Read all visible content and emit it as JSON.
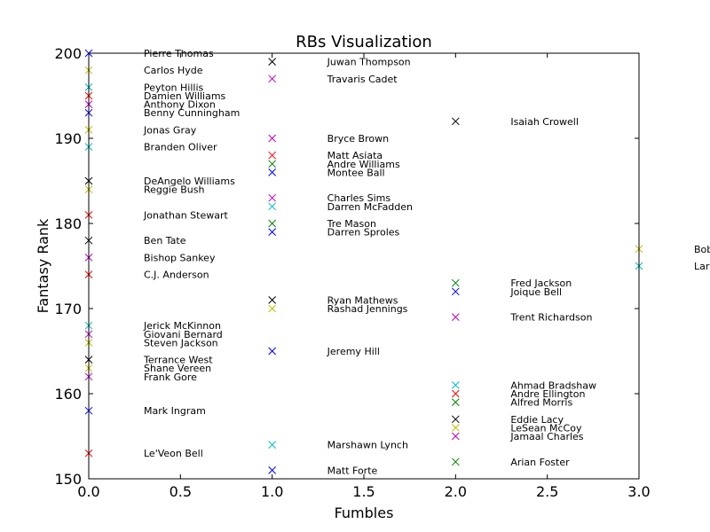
{
  "chart_data": {
    "type": "scatter",
    "title": "RBs Visualization",
    "xlabel": "Fumbles",
    "ylabel": "Fantasy Rank",
    "xlim": [
      0,
      3
    ],
    "ylim": [
      150,
      200
    ],
    "xticks": [
      "0.0",
      "0.5",
      "1.0",
      "1.5",
      "2.0",
      "2.5",
      "3.0"
    ],
    "xtick_values": [
      0,
      0.5,
      1,
      1.5,
      2,
      2.5,
      3
    ],
    "yticks": [
      "150",
      "160",
      "170",
      "180",
      "190",
      "200"
    ],
    "ytick_values": [
      150,
      160,
      170,
      180,
      190,
      200
    ],
    "marker": "x",
    "label_offset_x": 0.3,
    "grid": false,
    "palette": [
      "#0000ff",
      "#008000",
      "#ff0000",
      "#00bfbf",
      "#bf00bf",
      "#bfbf00",
      "#000000"
    ],
    "points": [
      {
        "name": "Pierre Thomas",
        "x": 0,
        "y": 200,
        "color": "#0000ff"
      },
      {
        "name": "Carlos Hyde",
        "x": 0,
        "y": 198,
        "color": "#bfbf00"
      },
      {
        "name": "Peyton Hillis",
        "x": 0,
        "y": 196,
        "color": "#00bfbf"
      },
      {
        "name": "Damien Williams",
        "x": 0,
        "y": 195,
        "color": "#ff0000"
      },
      {
        "name": "Anthony Dixon",
        "x": 0,
        "y": 194,
        "color": "#bf00bf"
      },
      {
        "name": "Benny Cunningham",
        "x": 0,
        "y": 193,
        "color": "#0000ff"
      },
      {
        "name": "Jonas Gray",
        "x": 0,
        "y": 191,
        "color": "#bfbf00"
      },
      {
        "name": "Branden Oliver",
        "x": 0,
        "y": 189,
        "color": "#00bfbf"
      },
      {
        "name": "DeAngelo Williams",
        "x": 0,
        "y": 185,
        "color": "#000000"
      },
      {
        "name": "Reggie Bush",
        "x": 0,
        "y": 184,
        "color": "#bfbf00"
      },
      {
        "name": "Jonathan Stewart",
        "x": 0,
        "y": 181,
        "color": "#ff0000"
      },
      {
        "name": "Ben Tate",
        "x": 0,
        "y": 178,
        "color": "#000000"
      },
      {
        "name": "Bishop Sankey",
        "x": 0,
        "y": 176,
        "color": "#bf00bf"
      },
      {
        "name": "C.J. Anderson",
        "x": 0,
        "y": 174,
        "color": "#ff0000"
      },
      {
        "name": "Jerick McKinnon",
        "x": 0,
        "y": 168,
        "color": "#00bfbf"
      },
      {
        "name": "Giovani Bernard",
        "x": 0,
        "y": 167,
        "color": "#bf00bf"
      },
      {
        "name": "Steven Jackson",
        "x": 0,
        "y": 166,
        "color": "#bfbf00"
      },
      {
        "name": "Terrance West",
        "x": 0,
        "y": 164,
        "color": "#000000"
      },
      {
        "name": "Shane Vereen",
        "x": 0,
        "y": 163,
        "color": "#bfbf00"
      },
      {
        "name": "Frank Gore",
        "x": 0,
        "y": 162,
        "color": "#bf00bf"
      },
      {
        "name": "Mark Ingram",
        "x": 0,
        "y": 158,
        "color": "#0000ff"
      },
      {
        "name": "Le'Veon Bell",
        "x": 0,
        "y": 153,
        "color": "#ff0000"
      },
      {
        "name": "Juwan Thompson",
        "x": 1,
        "y": 199,
        "color": "#000000"
      },
      {
        "name": "Travaris Cadet",
        "x": 1,
        "y": 197,
        "color": "#bf00bf"
      },
      {
        "name": "Bryce Brown",
        "x": 1,
        "y": 190,
        "color": "#bf00bf"
      },
      {
        "name": "Matt Asiata",
        "x": 1,
        "y": 188,
        "color": "#ff0000"
      },
      {
        "name": "Andre Williams",
        "x": 1,
        "y": 187,
        "color": "#008000"
      },
      {
        "name": "Montee Ball",
        "x": 1,
        "y": 186,
        "color": "#0000ff"
      },
      {
        "name": "Charles Sims",
        "x": 1,
        "y": 183,
        "color": "#bf00bf"
      },
      {
        "name": "Darren McFadden",
        "x": 1,
        "y": 182,
        "color": "#00bfbf"
      },
      {
        "name": "Tre Mason",
        "x": 1,
        "y": 180,
        "color": "#008000"
      },
      {
        "name": "Darren Sproles",
        "x": 1,
        "y": 179,
        "color": "#0000ff"
      },
      {
        "name": "Ryan Mathews",
        "x": 1,
        "y": 171,
        "color": "#000000"
      },
      {
        "name": "Rashad Jennings",
        "x": 1,
        "y": 170,
        "color": "#bfbf00"
      },
      {
        "name": "Jeremy Hill",
        "x": 1,
        "y": 165,
        "color": "#0000ff"
      },
      {
        "name": "Marshawn Lynch",
        "x": 1,
        "y": 154,
        "color": "#00bfbf"
      },
      {
        "name": "Matt Forte",
        "x": 1,
        "y": 151,
        "color": "#0000ff"
      },
      {
        "name": "Isaiah Crowell",
        "x": 2,
        "y": 192,
        "color": "#000000"
      },
      {
        "name": "Fred Jackson",
        "x": 2,
        "y": 173,
        "color": "#008000"
      },
      {
        "name": "Joique Bell",
        "x": 2,
        "y": 172,
        "color": "#0000ff"
      },
      {
        "name": "Trent Richardson",
        "x": 2,
        "y": 169,
        "color": "#bf00bf"
      },
      {
        "name": "Ahmad Bradshaw",
        "x": 2,
        "y": 161,
        "color": "#00bfbf"
      },
      {
        "name": "Andre Ellington",
        "x": 2,
        "y": 160,
        "color": "#ff0000"
      },
      {
        "name": "Alfred Morris",
        "x": 2,
        "y": 159,
        "color": "#008000"
      },
      {
        "name": "Eddie Lacy",
        "x": 2,
        "y": 157,
        "color": "#000000"
      },
      {
        "name": "LeSean McCoy",
        "x": 2,
        "y": 156,
        "color": "#bfbf00"
      },
      {
        "name": "Jamaal Charles",
        "x": 2,
        "y": 155,
        "color": "#bf00bf"
      },
      {
        "name": "Arian Foster",
        "x": 2,
        "y": 152,
        "color": "#008000"
      },
      {
        "name": "Bob",
        "x": 3,
        "y": 177,
        "color": "#bfbf00"
      },
      {
        "name": "Lar",
        "x": 3,
        "y": 175,
        "color": "#00bfbf"
      }
    ]
  }
}
